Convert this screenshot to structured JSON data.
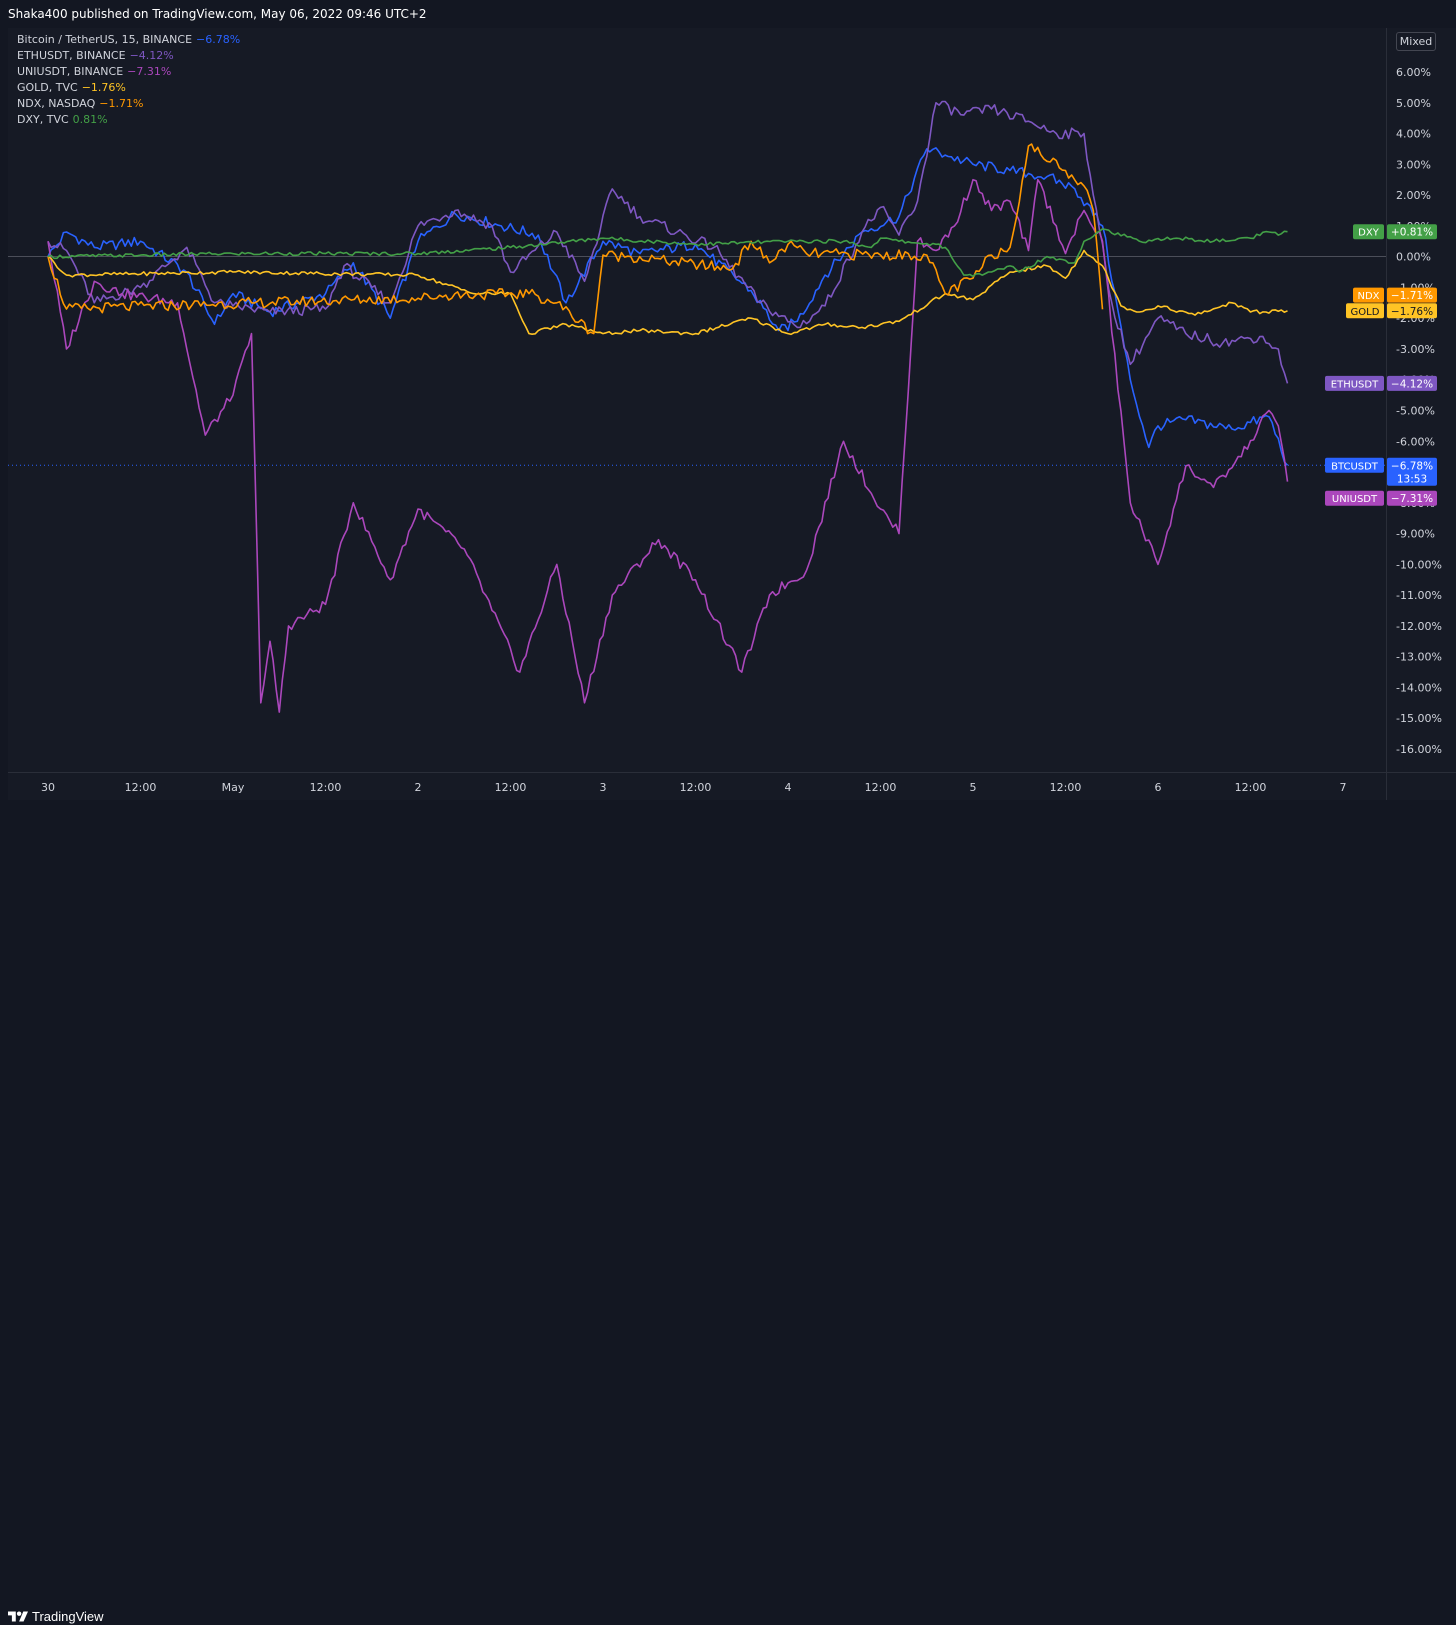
{
  "header": {
    "publish_text": "Shaka400 published on TradingView.com, May 06, 2022 09:46 UTC+2"
  },
  "legend": [
    {
      "name": "Bitcoin / TetherUS, 15, BINANCE",
      "change": "−6.78%",
      "color": "#2962ff"
    },
    {
      "name": "ETHUSDT, BINANCE",
      "change": "−4.12%",
      "color": "#7e57c2"
    },
    {
      "name": "UNIUSDT, BINANCE",
      "change": "−7.31%",
      "color": "#ab47bc"
    },
    {
      "name": "GOLD, TVC",
      "change": "−1.76%",
      "color": "#ffc425"
    },
    {
      "name": "NDX, NASDAQ",
      "change": "−1.71%",
      "color": "#ff9800"
    },
    {
      "name": "DXY, TVC",
      "change": "0.81%",
      "color": "#43a047"
    }
  ],
  "scale_mode": "Mixed",
  "footer": {
    "brand": "TradingView"
  },
  "chart_data": {
    "type": "line",
    "x_ticks": [
      "30",
      "12:00",
      "May",
      "12:00",
      "2",
      "12:00",
      "3",
      "12:00",
      "4",
      "12:00",
      "5",
      "12:00",
      "6",
      "12:00",
      "7"
    ],
    "y_ticks": [
      "6.00%",
      "5.00%",
      "4.00%",
      "3.00%",
      "2.00%",
      "1.00%",
      "0.00%",
      "-1.00%",
      "-2.00%",
      "-3.00%",
      "-4.00%",
      "-5.00%",
      "-6.00%",
      "-7.00%",
      "-8.00%",
      "-9.00%",
      "-10.00%",
      "-11.00%",
      "-12.00%",
      "-13.00%",
      "-14.00%",
      "-15.00%",
      "-16.00%"
    ],
    "ylim": [
      -16.5,
      6.5
    ],
    "y_unit": "%",
    "grid": false,
    "current_price_line": -6.78,
    "axis_labels": [
      {
        "symbol": "DXY",
        "value": "+0.81%",
        "y": 0.81,
        "color": "#43a047",
        "text_color": "#ffffff"
      },
      {
        "symbol": "NDX",
        "value": "−1.71%",
        "y": -1.25,
        "color": "#ff9800",
        "text_color": "#ffffff"
      },
      {
        "symbol": "GOLD",
        "value": "−1.76%",
        "y": -1.76,
        "color": "#ffc425",
        "text_color": "#131722"
      },
      {
        "symbol": "ETHUSDT",
        "value": "−4.12%",
        "y": -4.12,
        "color": "#7e57c2",
        "text_color": "#ffffff"
      },
      {
        "symbol": "BTCUSDT",
        "value": "−6.78%",
        "y": -6.78,
        "color": "#2962ff",
        "text_color": "#ffffff",
        "countdown": "13:53"
      },
      {
        "symbol": "UNIUSDT",
        "value": "−7.31%",
        "y": -7.85,
        "color": "#ab47bc",
        "text_color": "#ffffff"
      }
    ],
    "series": [
      {
        "name": "BTCUSDT",
        "color": "#2962ff",
        "x": [
          0,
          0.1,
          0.25,
          0.5,
          0.75,
          0.9,
          1.0,
          1.2,
          1.5,
          1.65,
          1.85,
          2.0,
          2.2,
          2.45,
          2.65,
          2.8,
          3.0,
          3.2,
          3.5,
          3.8,
          3.95,
          4.05,
          4.2,
          4.4,
          4.6,
          4.75,
          4.85,
          5.0,
          5.2,
          5.4,
          5.55,
          5.7,
          5.85,
          5.95,
          6.0,
          6.15,
          6.4,
          6.6,
          6.7
        ],
        "y": [
          0.0,
          0.8,
          0.3,
          0.5,
          -0.5,
          -2.2,
          -1.2,
          -1.8,
          -1.2,
          -0.2,
          -2.0,
          0.5,
          1.4,
          1.0,
          0.7,
          -1.5,
          0.5,
          0.1,
          0.4,
          -1.1,
          -2.4,
          -2.1,
          -0.6,
          0.8,
          1.3,
          3.5,
          3.3,
          3.0,
          2.8,
          2.6,
          2.2,
          1.0,
          -4.0,
          -6.2,
          -5.5,
          -5.3,
          -5.6,
          -5.2,
          -6.78
        ]
      },
      {
        "name": "ETHUSDT",
        "color": "#7e57c2",
        "x": [
          0,
          0.1,
          0.25,
          0.5,
          0.75,
          0.9,
          1.0,
          1.2,
          1.5,
          1.6,
          1.85,
          2.0,
          2.2,
          2.4,
          2.5,
          2.75,
          2.9,
          3.05,
          3.2,
          3.4,
          3.6,
          3.85,
          4.05,
          4.2,
          4.4,
          4.5,
          4.6,
          4.7,
          4.8,
          4.95,
          5.1,
          5.3,
          5.45,
          5.6,
          5.65,
          5.75,
          5.85,
          6.0,
          6.15,
          6.35,
          6.55,
          6.65,
          6.7
        ],
        "y": [
          0.5,
          0.2,
          -1.5,
          -1.0,
          0.3,
          -1.5,
          -1.6,
          -1.8,
          -1.7,
          -0.3,
          -1.5,
          1.0,
          1.5,
          1.0,
          -0.5,
          0.8,
          -0.8,
          2.2,
          1.3,
          0.8,
          0.3,
          -1.5,
          -2.3,
          -1.6,
          0.8,
          1.6,
          0.7,
          1.8,
          5.0,
          4.6,
          4.8,
          4.4,
          4.0,
          4.0,
          2.0,
          -1.5,
          -3.5,
          -2.0,
          -2.5,
          -2.8,
          -2.6,
          -3.0,
          -4.12
        ]
      },
      {
        "name": "UNIUSDT",
        "color": "#ab47bc",
        "x": [
          0,
          0.1,
          0.25,
          0.4,
          0.7,
          0.85,
          1.0,
          1.1,
          1.15,
          1.2,
          1.25,
          1.3,
          1.5,
          1.65,
          1.85,
          2.0,
          2.25,
          2.4,
          2.55,
          2.75,
          2.9,
          3.05,
          3.3,
          3.5,
          3.75,
          3.9,
          4.1,
          4.3,
          4.5,
          4.6,
          4.7,
          4.8,
          4.9,
          5.0,
          5.1,
          5.2,
          5.3,
          5.35,
          5.45,
          5.5,
          5.6,
          5.7,
          5.85,
          6.0,
          6.15,
          6.3,
          6.45,
          6.6,
          6.65,
          6.7
        ],
        "y": [
          0.5,
          -3.0,
          -0.8,
          -1.2,
          -1.5,
          -5.8,
          -4.5,
          -2.5,
          -14.5,
          -12.5,
          -14.8,
          -12.0,
          -11.3,
          -8.0,
          -10.5,
          -8.2,
          -9.5,
          -11.5,
          -13.5,
          -10.0,
          -14.5,
          -11.0,
          -9.2,
          -10.5,
          -13.5,
          -11.0,
          -10.2,
          -6.0,
          -8.2,
          -9.0,
          0.5,
          0.2,
          1.0,
          2.5,
          1.5,
          1.8,
          0.2,
          2.5,
          1.0,
          0.1,
          1.5,
          0.5,
          -8.0,
          -10.0,
          -6.8,
          -7.5,
          -6.5,
          -5.0,
          -5.5,
          -7.31
        ]
      },
      {
        "name": "GOLD",
        "color": "#ffc425",
        "x": [
          0,
          0.1,
          1.0,
          2.0,
          2.3,
          2.5,
          2.6,
          2.8,
          3.0,
          3.2,
          3.5,
          3.8,
          4.0,
          4.2,
          4.4,
          4.6,
          4.85,
          5.0,
          5.2,
          5.4,
          5.5,
          5.6,
          5.7,
          5.8,
          5.9,
          6.0,
          6.2,
          6.4,
          6.5,
          6.7
        ],
        "y": [
          0.0,
          -0.6,
          -0.5,
          -0.6,
          -1.2,
          -1.2,
          -2.5,
          -2.2,
          -2.5,
          -2.4,
          -2.5,
          -2.0,
          -2.5,
          -2.2,
          -2.3,
          -2.1,
          -1.2,
          -1.4,
          -0.5,
          -0.3,
          -0.7,
          0.2,
          -0.3,
          -1.6,
          -1.8,
          -1.6,
          -1.9,
          -1.5,
          -1.8,
          -1.76
        ]
      },
      {
        "name": "NDX",
        "color": "#ff9800",
        "x": [
          0,
          0.1,
          1.1,
          2.0,
          2.15,
          2.6,
          2.75,
          2.95,
          3.0,
          3.15,
          3.7,
          3.8,
          3.9,
          4.0,
          4.1,
          4.5,
          4.75,
          4.85,
          5.0,
          5.1,
          5.2,
          5.3,
          5.5,
          5.6,
          5.65,
          5.7
        ],
        "y": [
          0.0,
          -1.7,
          -1.5,
          -1.35,
          -1.25,
          -1.2,
          -1.5,
          -2.5,
          0.05,
          0.0,
          -0.4,
          0.5,
          -0.2,
          0.4,
          0.1,
          0.05,
          0.05,
          -1.2,
          -0.7,
          0.05,
          0.3,
          3.6,
          2.8,
          2.3,
          1.5,
          -1.71
        ]
      },
      {
        "name": "DXY",
        "color": "#43a047",
        "x": [
          0,
          0.5,
          1.0,
          1.5,
          2.0,
          2.5,
          3.0,
          3.5,
          4.0,
          4.3,
          4.45,
          4.5,
          4.6,
          4.8,
          4.85,
          4.95,
          5.05,
          5.15,
          5.2,
          5.25,
          5.4,
          5.55,
          5.6,
          5.7,
          5.9,
          6.1,
          6.3,
          6.5,
          6.6,
          6.65,
          6.7
        ],
        "y": [
          0.0,
          0.05,
          0.1,
          0.1,
          0.1,
          0.3,
          0.6,
          0.4,
          0.5,
          0.5,
          0.3,
          0.6,
          0.5,
          0.4,
          0.3,
          -0.6,
          -0.6,
          -0.4,
          -0.3,
          -0.5,
          0.0,
          -0.2,
          0.5,
          0.9,
          0.5,
          0.6,
          0.5,
          0.6,
          0.8,
          0.7,
          0.81
        ]
      }
    ]
  }
}
